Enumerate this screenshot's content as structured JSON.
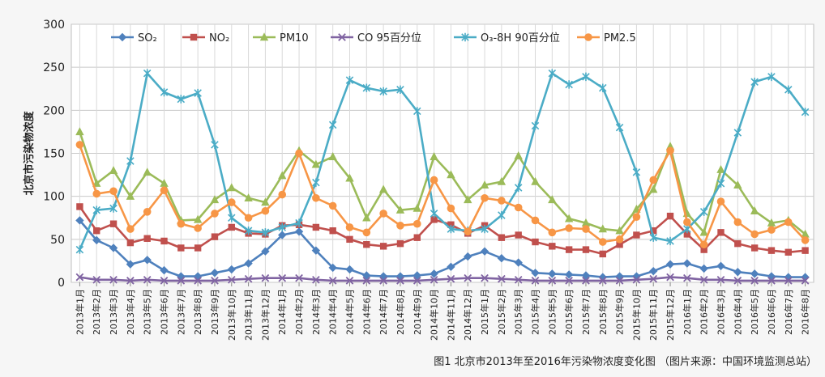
{
  "caption": "图1 北京市2013年至2016年污染物浓度变化图 （图片来源：中国环境监测总站）",
  "chart_data": {
    "type": "line",
    "ylabel": "北京市污染物浓度",
    "ylim": [
      0,
      300
    ],
    "yticks": [
      0,
      50,
      100,
      150,
      200,
      250,
      300
    ],
    "grid": true,
    "legend_position": "top",
    "categories": [
      "2013年1月",
      "2013年2月",
      "2013年3月",
      "2013年4月",
      "2013年5月",
      "2013年6月",
      "2013年7月",
      "2013年8月",
      "2013年9月",
      "2013年10月",
      "2013年11月",
      "2013年12月",
      "2014年1月",
      "2014年2月",
      "2014年3月",
      "2014年4月",
      "2014年5月",
      "2014年6月",
      "2014年7月",
      "2014年8月",
      "2014年9月",
      "2014年10月",
      "2014年11月",
      "2014年12月",
      "2015年1月",
      "2015年2月",
      "2015年3月",
      "2015年4月",
      "2015年5月",
      "2015年6月",
      "2015年7月",
      "2015年8月",
      "2015年9月",
      "2015年10月",
      "2015年11月",
      "2015年12月",
      "2016年1月",
      "2016年2月",
      "2016年3月",
      "2016年4月",
      "2016年5月",
      "2016年6月",
      "2016年7月",
      "2016年8月"
    ],
    "series": [
      {
        "name": "SO₂",
        "color": "#4f81bd",
        "marker": "diamond",
        "values": [
          72,
          49,
          40,
          21,
          26,
          14,
          7,
          7,
          11,
          15,
          22,
          36,
          55,
          59,
          37,
          17,
          15,
          8,
          7,
          7,
          8,
          10,
          18,
          30,
          36,
          28,
          23,
          11,
          10,
          9,
          8,
          6,
          7,
          7,
          13,
          21,
          22,
          16,
          19,
          12,
          10,
          7,
          6,
          6
        ]
      },
      {
        "name": "NO₂",
        "color": "#c0504d",
        "marker": "square",
        "values": [
          88,
          60,
          68,
          46,
          51,
          48,
          40,
          40,
          53,
          64,
          57,
          56,
          66,
          67,
          64,
          60,
          50,
          44,
          42,
          45,
          52,
          73,
          67,
          57,
          66,
          52,
          55,
          47,
          42,
          38,
          38,
          33,
          44,
          55,
          60,
          77,
          56,
          38,
          58,
          45,
          40,
          37,
          35,
          37
        ]
      },
      {
        "name": "PM10",
        "color": "#9bbb59",
        "marker": "triangle",
        "values": [
          175,
          115,
          130,
          100,
          128,
          115,
          72,
          73,
          96,
          110,
          98,
          93,
          124,
          153,
          137,
          146,
          121,
          75,
          108,
          84,
          86,
          146,
          125,
          96,
          113,
          117,
          147,
          117,
          96,
          74,
          69,
          62,
          60,
          85,
          108,
          158,
          80,
          58,
          131,
          113,
          83,
          69,
          72,
          56
        ]
      },
      {
        "name": "CO 95百分位",
        "color": "#8064a2",
        "marker": "x",
        "values": [
          6,
          3,
          3,
          2,
          3,
          2,
          2,
          2,
          2,
          3,
          4,
          5,
          5,
          5,
          3,
          2,
          2,
          2,
          2,
          2,
          2,
          3,
          4,
          5,
          5,
          4,
          3,
          2,
          2,
          2,
          2,
          2,
          2,
          3,
          4,
          6,
          5,
          3,
          3,
          2,
          2,
          2,
          2,
          2
        ]
      },
      {
        "name": "O₃-8H 90百分位",
        "color": "#4bacc6",
        "marker": "star",
        "values": [
          38,
          84,
          86,
          141,
          243,
          221,
          213,
          220,
          160,
          75,
          60,
          58,
          64,
          69,
          116,
          183,
          235,
          226,
          222,
          224,
          199,
          80,
          62,
          60,
          62,
          78,
          110,
          182,
          243,
          230,
          239,
          226,
          180,
          128,
          52,
          48,
          62,
          82,
          115,
          174,
          233,
          239,
          224,
          198
        ]
      },
      {
        "name": "PM2.5",
        "color": "#f79646",
        "marker": "circle",
        "values": [
          160,
          103,
          106,
          62,
          82,
          107,
          68,
          63,
          80,
          93,
          75,
          83,
          102,
          150,
          98,
          89,
          64,
          58,
          80,
          66,
          68,
          119,
          86,
          59,
          98,
          95,
          87,
          72,
          58,
          63,
          62,
          47,
          50,
          76,
          119,
          153,
          70,
          44,
          94,
          70,
          56,
          61,
          70,
          49
        ]
      }
    ]
  }
}
